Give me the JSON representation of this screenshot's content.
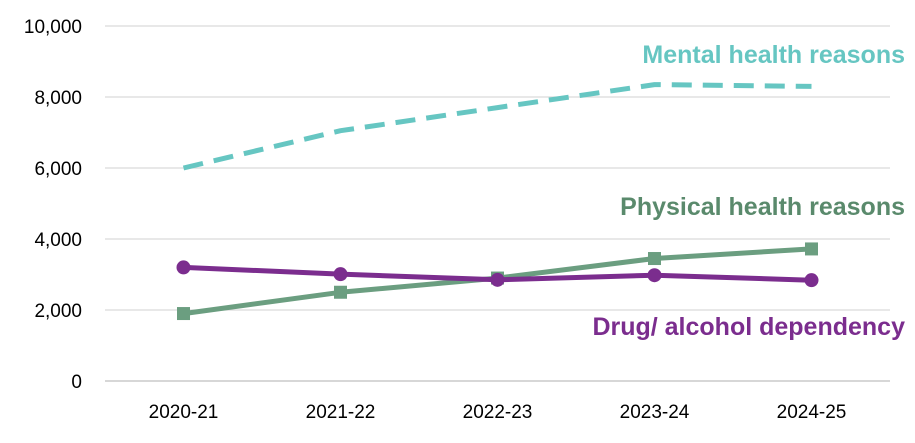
{
  "chart_data": {
    "type": "line",
    "categories": [
      "2020-21",
      "2021-22",
      "2022-23",
      "2023-24",
      "2024-25"
    ],
    "ylim": [
      0,
      10000
    ],
    "yticks": [
      0,
      2000,
      4000,
      6000,
      8000,
      10000
    ],
    "ytick_labels": [
      "0",
      "2,000",
      "4,000",
      "6,000",
      "8,000",
      "10,000"
    ],
    "grid": true,
    "series": [
      {
        "name": "Mental health reasons",
        "values": [
          6000,
          7050,
          7700,
          8350,
          8300
        ],
        "color": "#66c6c2",
        "style": "dashed",
        "marker": "none"
      },
      {
        "name": "Physical health reasons",
        "values": [
          1900,
          2500,
          2900,
          3450,
          3720
        ],
        "color": "#6b9e80",
        "style": "solid",
        "marker": "square"
      },
      {
        "name": "Drug/ alcohol dependency",
        "values": [
          3200,
          3010,
          2850,
          2980,
          2840
        ],
        "color": "#7b2d8e",
        "style": "solid",
        "marker": "circle"
      }
    ]
  }
}
